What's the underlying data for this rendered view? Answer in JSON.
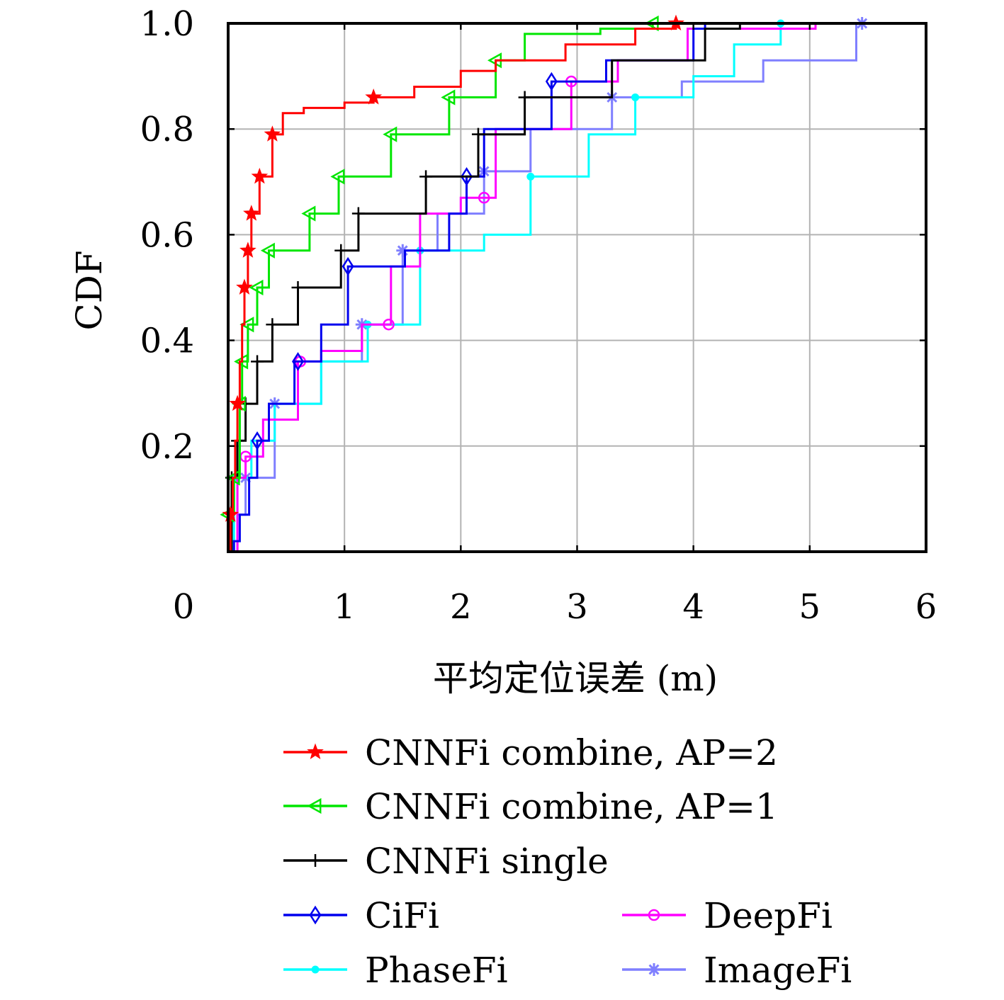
{
  "chart_data": {
    "type": "line",
    "subtype": "empirical-cdf-step",
    "title": "",
    "xlabel": "平均定位误差 (m)",
    "ylabel": "CDF",
    "xlim": [
      0,
      6
    ],
    "ylim": [
      0,
      1
    ],
    "xticks": [
      "0",
      "1",
      "2",
      "3",
      "4",
      "5",
      "6"
    ],
    "yticks": [
      "0.2",
      "0.4",
      "0.6",
      "0.8",
      "1.0"
    ],
    "grid": true,
    "legend": {
      "placement": "below-plot",
      "columns": 2
    },
    "series": [
      {
        "name": "CNNFi combine, AP=2",
        "color": "#ff0000",
        "marker": "star-icon",
        "points": [
          [
            0.0,
            0.0
          ],
          [
            0.02,
            0.07
          ],
          [
            0.04,
            0.14
          ],
          [
            0.06,
            0.21
          ],
          [
            0.08,
            0.28
          ],
          [
            0.1,
            0.36
          ],
          [
            0.12,
            0.43
          ],
          [
            0.14,
            0.5
          ],
          [
            0.17,
            0.57
          ],
          [
            0.2,
            0.64
          ],
          [
            0.27,
            0.71
          ],
          [
            0.38,
            0.79
          ],
          [
            0.47,
            0.83
          ],
          [
            0.65,
            0.84
          ],
          [
            1.0,
            0.85
          ],
          [
            1.25,
            0.86
          ],
          [
            1.6,
            0.88
          ],
          [
            2.0,
            0.91
          ],
          [
            2.3,
            0.93
          ],
          [
            2.9,
            0.96
          ],
          [
            3.5,
            0.99
          ],
          [
            3.85,
            1.0
          ]
        ],
        "markers_x": [
          0.02,
          0.08,
          0.14,
          0.17,
          0.2,
          0.27,
          0.38,
          1.25,
          3.85
        ]
      },
      {
        "name": "CNNFi combine, AP=1",
        "color": "#00e600",
        "marker": "left-triangle-icon",
        "points": [
          [
            0.0,
            0.0
          ],
          [
            0.0,
            0.07
          ],
          [
            0.05,
            0.14
          ],
          [
            0.1,
            0.28
          ],
          [
            0.12,
            0.36
          ],
          [
            0.17,
            0.43
          ],
          [
            0.25,
            0.5
          ],
          [
            0.35,
            0.57
          ],
          [
            0.7,
            0.64
          ],
          [
            0.95,
            0.71
          ],
          [
            1.4,
            0.79
          ],
          [
            1.9,
            0.86
          ],
          [
            2.3,
            0.93
          ],
          [
            2.55,
            0.98
          ],
          [
            3.2,
            0.99
          ],
          [
            3.65,
            1.0
          ]
        ],
        "markers_x": [
          0.0,
          0.05,
          0.1,
          0.12,
          0.17,
          0.25,
          0.35,
          0.7,
          0.95,
          1.4,
          1.9,
          2.3,
          3.65
        ]
      },
      {
        "name": "CNNFi single",
        "color": "#000000",
        "marker": "plus-icon",
        "points": [
          [
            0.0,
            0.0
          ],
          [
            0.03,
            0.14
          ],
          [
            0.08,
            0.21
          ],
          [
            0.15,
            0.28
          ],
          [
            0.25,
            0.36
          ],
          [
            0.38,
            0.43
          ],
          [
            0.6,
            0.5
          ],
          [
            0.97,
            0.57
          ],
          [
            1.12,
            0.64
          ],
          [
            1.7,
            0.71
          ],
          [
            2.15,
            0.79
          ],
          [
            2.55,
            0.86
          ],
          [
            3.3,
            0.93
          ],
          [
            4.1,
            0.99
          ],
          [
            4.4,
            1.0
          ]
        ],
        "markers_x": [
          0.03,
          0.08,
          0.15,
          0.25,
          0.38,
          0.6,
          0.97,
          1.12,
          1.7,
          2.15,
          2.55
        ]
      },
      {
        "name": "CiFi",
        "color": "#0000ee",
        "marker": "diamond-icon",
        "points": [
          [
            0.0,
            0.0
          ],
          [
            0.05,
            0.02
          ],
          [
            0.1,
            0.07
          ],
          [
            0.18,
            0.14
          ],
          [
            0.25,
            0.21
          ],
          [
            0.35,
            0.28
          ],
          [
            0.57,
            0.36
          ],
          [
            0.8,
            0.43
          ],
          [
            1.03,
            0.54
          ],
          [
            1.52,
            0.57
          ],
          [
            1.9,
            0.64
          ],
          [
            2.05,
            0.71
          ],
          [
            2.2,
            0.8
          ],
          [
            2.78,
            0.89
          ],
          [
            3.25,
            0.93
          ],
          [
            4.0,
            0.99
          ],
          [
            4.1,
            1.0
          ]
        ],
        "markers_x": [
          0.25,
          0.6,
          1.03,
          2.05,
          2.78
        ]
      },
      {
        "name": "DeepFi",
        "color": "#ff00ff",
        "marker": "circle-icon",
        "points": [
          [
            0.0,
            0.0
          ],
          [
            0.08,
            0.14
          ],
          [
            0.15,
            0.18
          ],
          [
            0.3,
            0.25
          ],
          [
            0.6,
            0.36
          ],
          [
            0.8,
            0.38
          ],
          [
            1.15,
            0.43
          ],
          [
            1.4,
            0.54
          ],
          [
            1.65,
            0.64
          ],
          [
            2.0,
            0.67
          ],
          [
            2.3,
            0.8
          ],
          [
            2.95,
            0.89
          ],
          [
            3.35,
            0.93
          ],
          [
            3.95,
            0.99
          ],
          [
            5.05,
            1.0
          ]
        ],
        "markers_x": [
          0.15,
          0.62,
          1.38,
          2.2,
          2.95
        ]
      },
      {
        "name": "PhaseFi",
        "color": "#00ffff",
        "marker": "dot-icon",
        "points": [
          [
            0.0,
            0.0
          ],
          [
            0.05,
            0.14
          ],
          [
            0.2,
            0.21
          ],
          [
            0.4,
            0.28
          ],
          [
            0.8,
            0.36
          ],
          [
            1.2,
            0.43
          ],
          [
            1.65,
            0.57
          ],
          [
            2.2,
            0.6
          ],
          [
            2.6,
            0.71
          ],
          [
            3.1,
            0.79
          ],
          [
            3.5,
            0.86
          ],
          [
            4.0,
            0.9
          ],
          [
            4.35,
            0.96
          ],
          [
            4.75,
            1.0
          ]
        ],
        "markers_x": [
          0.05,
          1.2,
          1.65,
          2.6,
          3.5,
          4.75
        ]
      },
      {
        "name": "ImageFi",
        "color": "#7f7fff",
        "marker": "asterisk-icon",
        "points": [
          [
            0.0,
            0.0
          ],
          [
            0.08,
            0.07
          ],
          [
            0.15,
            0.14
          ],
          [
            0.4,
            0.28
          ],
          [
            0.8,
            0.36
          ],
          [
            1.15,
            0.43
          ],
          [
            1.5,
            0.57
          ],
          [
            1.8,
            0.64
          ],
          [
            2.2,
            0.72
          ],
          [
            2.6,
            0.8
          ],
          [
            3.3,
            0.86
          ],
          [
            3.9,
            0.89
          ],
          [
            4.6,
            0.93
          ],
          [
            5.4,
            1.0
          ],
          [
            5.45,
            1.0
          ]
        ],
        "markers_x": [
          0.15,
          0.4,
          1.15,
          1.5,
          2.2,
          3.3,
          5.45
        ]
      }
    ]
  }
}
